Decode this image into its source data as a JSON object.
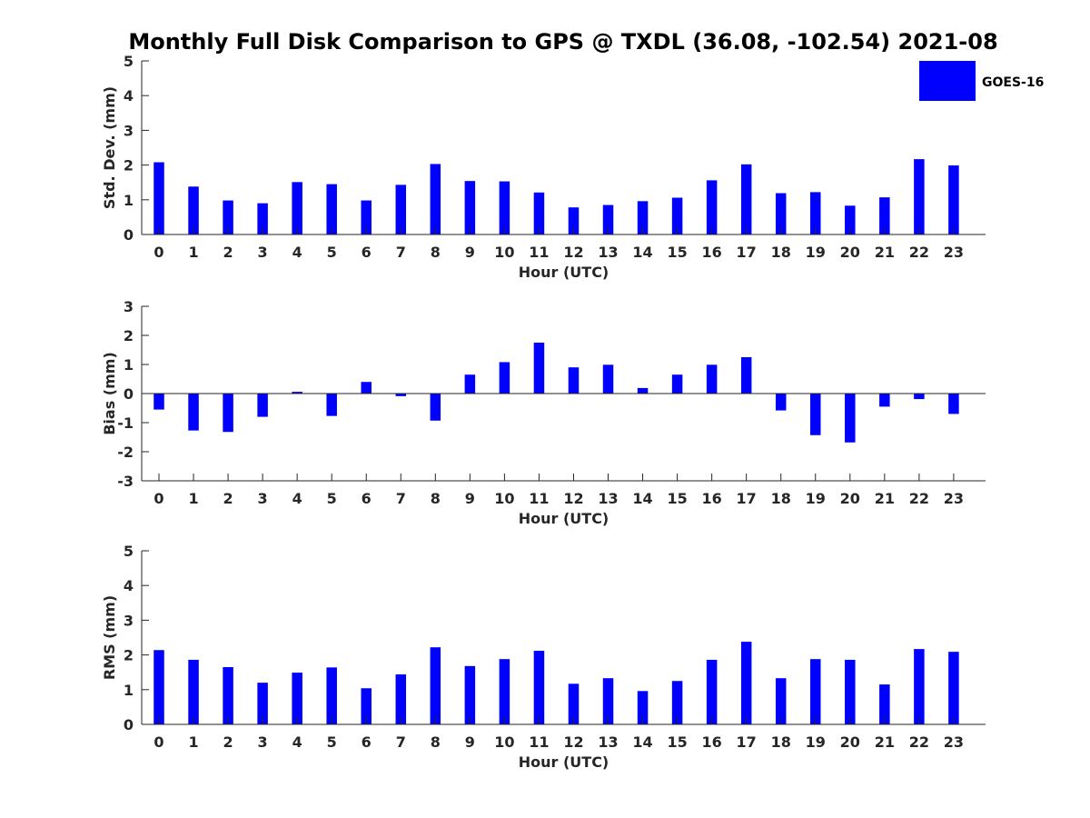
{
  "title": "Monthly Full Disk Comparison to GPS @ TXDL (36.08, -102.54) 2021-08",
  "legend": {
    "label": "GOES-16",
    "color": "#0000ff"
  },
  "chart_data": [
    {
      "type": "bar",
      "categories": [
        "0",
        "1",
        "2",
        "3",
        "4",
        "5",
        "6",
        "7",
        "8",
        "9",
        "10",
        "11",
        "12",
        "13",
        "14",
        "15",
        "16",
        "17",
        "18",
        "19",
        "20",
        "21",
        "22",
        "23"
      ],
      "series": [
        {
          "name": "GOES-16",
          "values": [
            2.08,
            1.38,
            0.98,
            0.9,
            1.51,
            1.45,
            0.98,
            1.43,
            2.03,
            1.54,
            1.53,
            1.21,
            0.78,
            0.85,
            0.96,
            1.06,
            1.56,
            2.02,
            1.19,
            1.22,
            0.83,
            1.07,
            2.17,
            1.99
          ]
        }
      ],
      "xlabel": "Hour (UTC)",
      "ylabel": "Std. Dev. (mm)",
      "ylim": [
        0,
        5
      ],
      "yticks": [
        "0",
        "1",
        "2",
        "3",
        "4",
        "5"
      ],
      "grid": false,
      "legend_position": "top-right"
    },
    {
      "type": "bar",
      "categories": [
        "0",
        "1",
        "2",
        "3",
        "4",
        "5",
        "6",
        "7",
        "8",
        "9",
        "10",
        "11",
        "12",
        "13",
        "14",
        "15",
        "16",
        "17",
        "18",
        "19",
        "20",
        "21",
        "22",
        "23"
      ],
      "series": [
        {
          "name": "GOES-16",
          "values": [
            -0.55,
            -1.27,
            -1.32,
            -0.8,
            0.06,
            -0.77,
            0.4,
            -0.09,
            -0.93,
            0.65,
            1.08,
            1.75,
            0.9,
            0.99,
            0.19,
            0.65,
            0.99,
            1.25,
            -0.58,
            -1.43,
            -1.68,
            -0.45,
            -0.19,
            -0.7
          ]
        }
      ],
      "xlabel": "Hour (UTC)",
      "ylabel": "Bias (mm)",
      "ylim": [
        -3,
        3
      ],
      "yticks": [
        "-3",
        "-2",
        "-1",
        "0",
        "1",
        "2",
        "3"
      ],
      "grid": false
    },
    {
      "type": "bar",
      "categories": [
        "0",
        "1",
        "2",
        "3",
        "4",
        "5",
        "6",
        "7",
        "8",
        "9",
        "10",
        "11",
        "12",
        "13",
        "14",
        "15",
        "16",
        "17",
        "18",
        "19",
        "20",
        "21",
        "22",
        "23"
      ],
      "series": [
        {
          "name": "GOES-16",
          "values": [
            2.14,
            1.86,
            1.65,
            1.2,
            1.49,
            1.64,
            1.04,
            1.44,
            2.22,
            1.68,
            1.88,
            2.12,
            1.17,
            1.33,
            0.96,
            1.25,
            1.86,
            2.38,
            1.33,
            1.88,
            1.86,
            1.15,
            2.17,
            2.09
          ]
        }
      ],
      "xlabel": "Hour (UTC)",
      "ylabel": "RMS (mm)",
      "ylim": [
        0,
        5
      ],
      "yticks": [
        "0",
        "1",
        "2",
        "3",
        "4",
        "5"
      ],
      "grid": false
    }
  ]
}
